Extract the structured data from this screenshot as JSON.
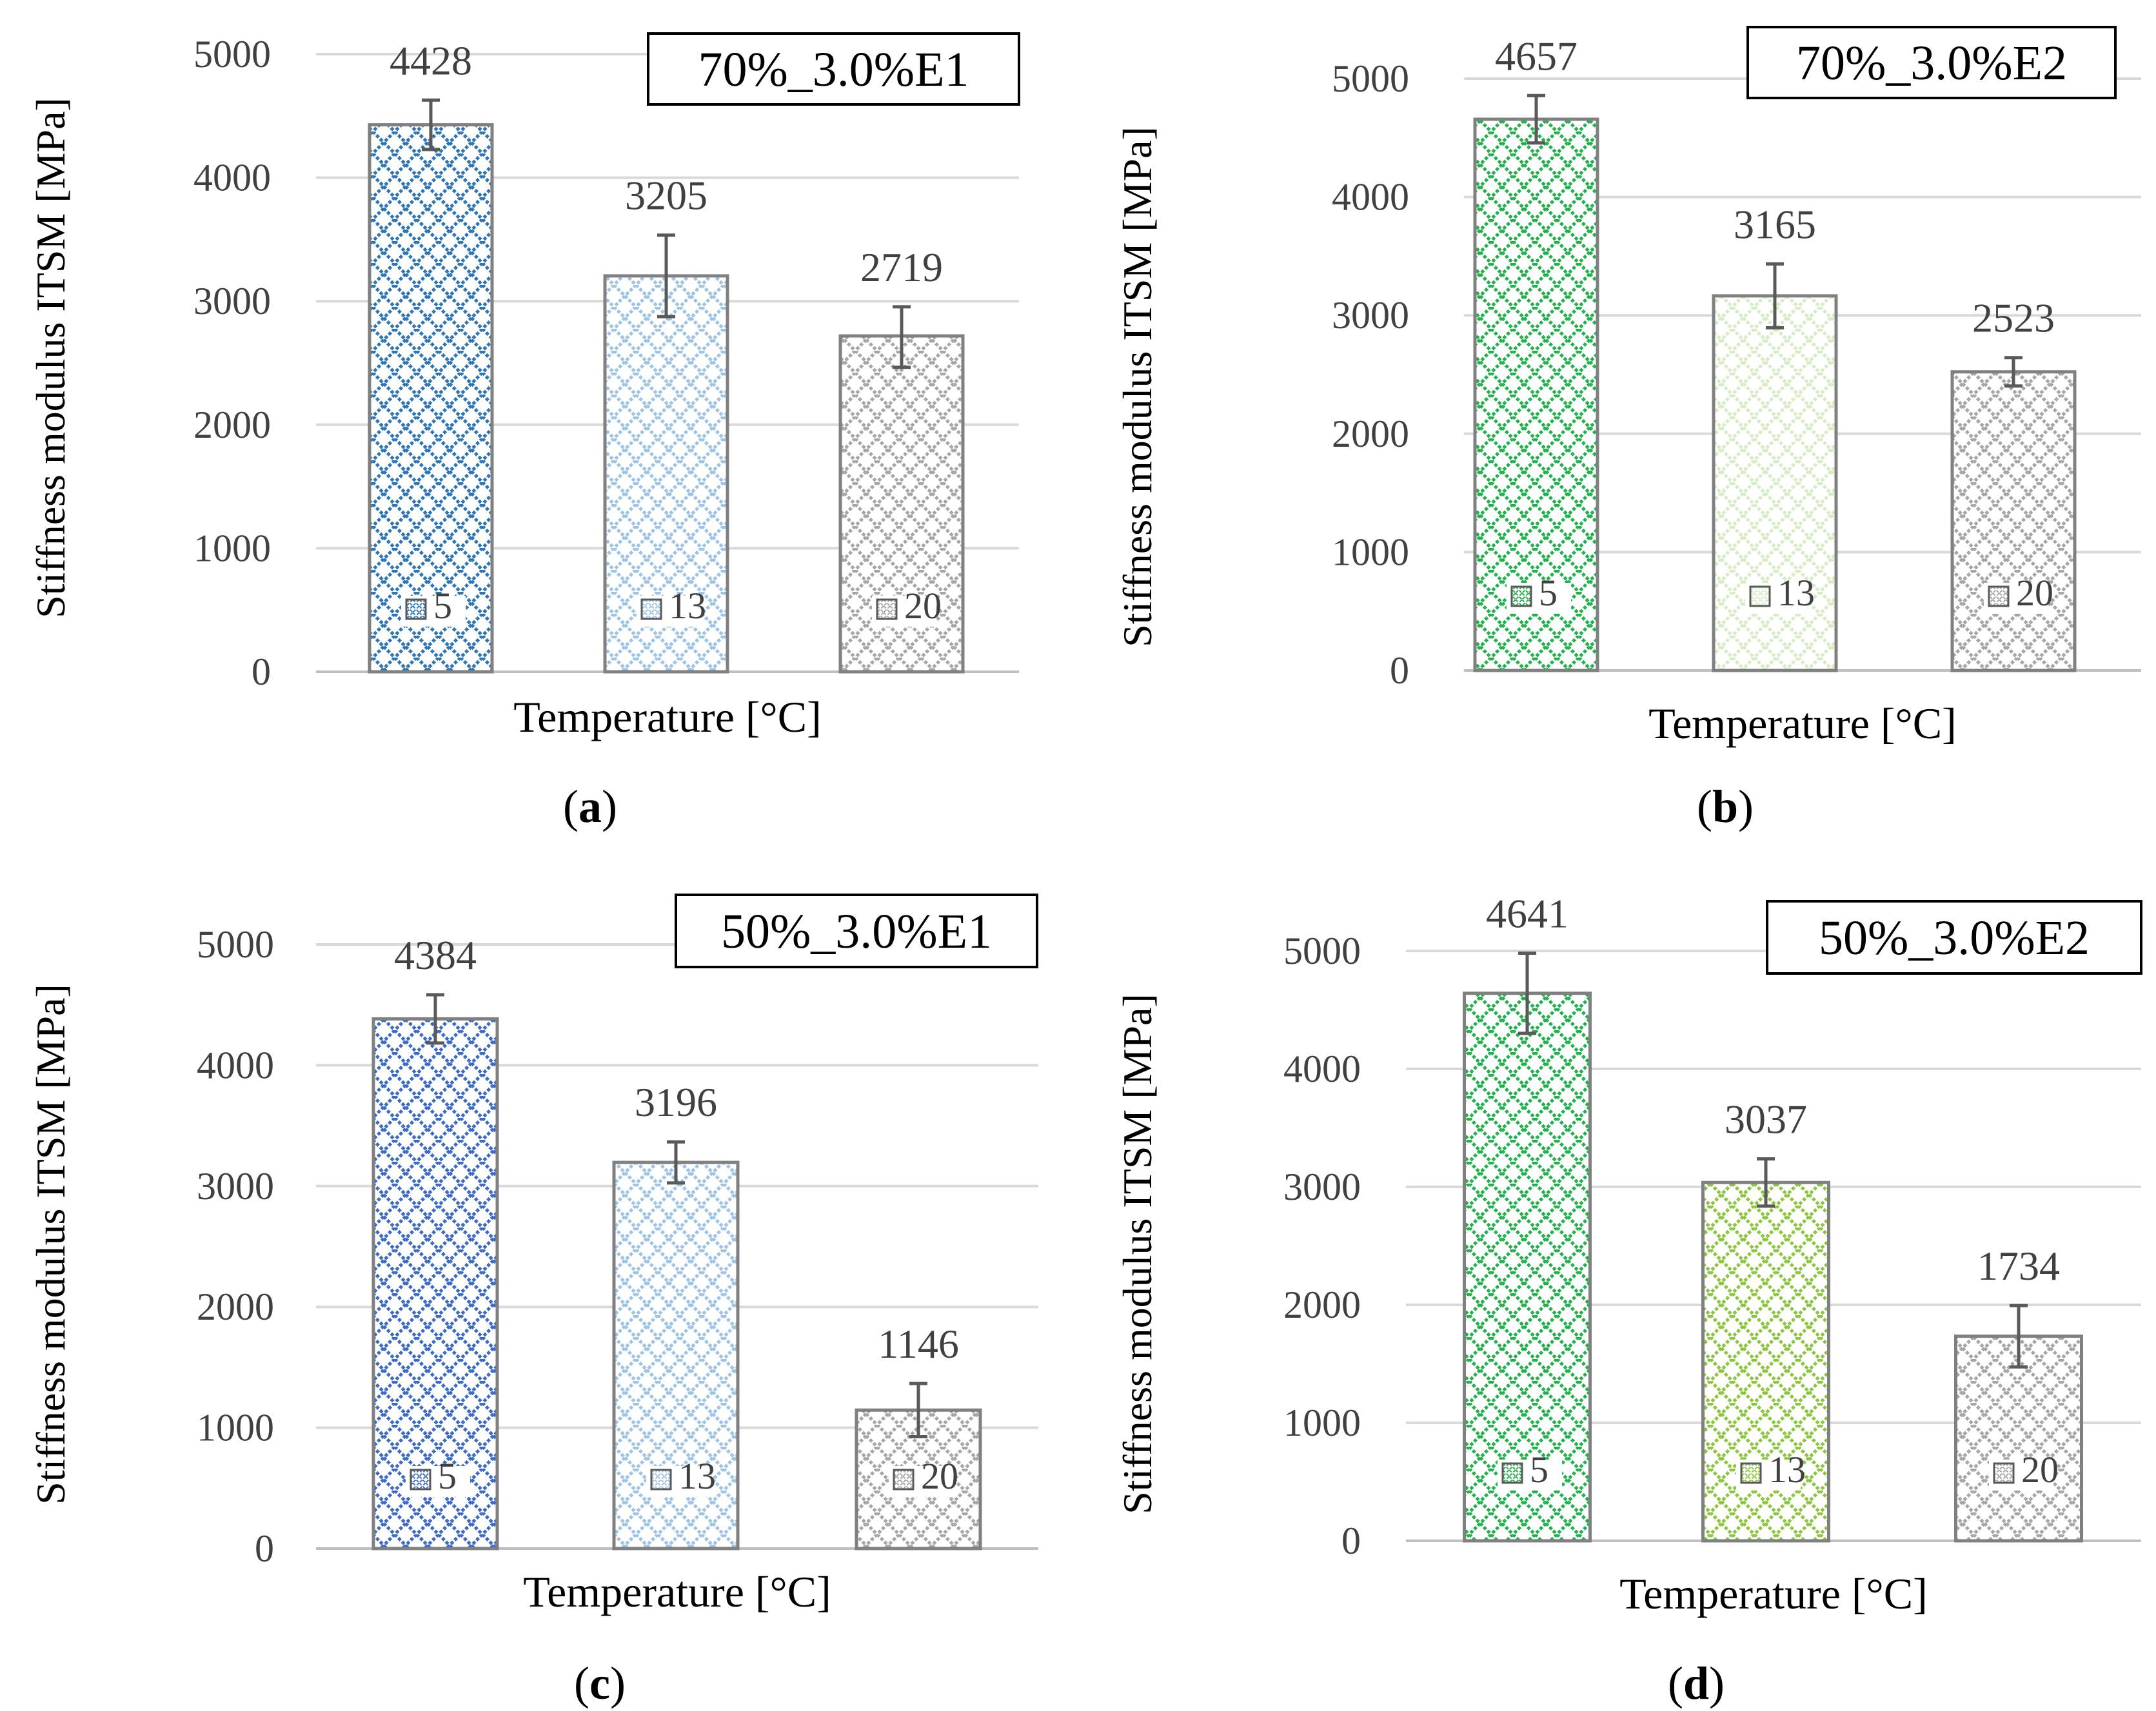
{
  "chart_data": [
    {
      "type": "bar",
      "panel_label": "a",
      "title": "70%_3.0%E1",
      "xlabel": "Temperature [°C]",
      "ylabel": "Stiffness modulus ITSM [MPa]",
      "ylim": [
        0,
        5000
      ],
      "yticks": [
        "0",
        "1000",
        "2000",
        "3000",
        "4000",
        "5000"
      ],
      "grid": true,
      "legend": "inside-bars-bottom",
      "categories": [
        "5",
        "13",
        "20"
      ],
      "values": [
        4428,
        3205,
        2719
      ],
      "value_labels": [
        "4428",
        "3205",
        "2719"
      ],
      "error_low": [
        4228,
        2875,
        2465
      ],
      "error_high": [
        4628,
        3535,
        2955
      ],
      "colors": [
        "#2e75b6",
        "#9dc3e6",
        "#a6a6a6"
      ]
    },
    {
      "type": "bar",
      "panel_label": "b",
      "title": "70%_3.0%E2",
      "xlabel": "Temperature [°C]",
      "ylabel": "Stiffness modulus ITSM [MPa]",
      "ylim": [
        0,
        5000
      ],
      "yticks": [
        "0",
        "1000",
        "2000",
        "3000",
        "4000",
        "5000"
      ],
      "grid": true,
      "legend": "inside-bars-bottom",
      "categories": [
        "5",
        "13",
        "20"
      ],
      "values": [
        4657,
        3165,
        2523
      ],
      "value_labels": [
        "4657",
        "3165",
        "2523"
      ],
      "error_low": [
        4457,
        2895,
        2403
      ],
      "error_high": [
        4857,
        3435,
        2643
      ],
      "colors": [
        "#22b14c",
        "#d5ecc4",
        "#a6a6a6"
      ]
    },
    {
      "type": "bar",
      "panel_label": "c",
      "title": "50%_3.0%E1",
      "xlabel": "Temperature [°C]",
      "ylabel": "Stiffness modulus ITSM [MPa]",
      "ylim": [
        0,
        5000
      ],
      "yticks": [
        "0",
        "1000",
        "2000",
        "3000",
        "4000",
        "5000"
      ],
      "grid": true,
      "legend": "inside-bars-bottom",
      "categories": [
        "5",
        "13",
        "20"
      ],
      "values": [
        4384,
        3196,
        1146
      ],
      "value_labels": [
        "4384",
        "3196",
        "1146"
      ],
      "error_low": [
        4184,
        3026,
        926
      ],
      "error_high": [
        4584,
        3366,
        1366
      ],
      "colors": [
        "#3c6bc4",
        "#9dc3e6",
        "#a6a6a6"
      ]
    },
    {
      "type": "bar",
      "panel_label": "d",
      "title": "50%_3.0%E2",
      "xlabel": "Temperature [°C]",
      "ylabel": "Stiffness modulus ITSM [MPa]",
      "ylim": [
        0,
        5000
      ],
      "yticks": [
        "0",
        "1000",
        "2000",
        "3000",
        "4000",
        "5000"
      ],
      "grid": true,
      "legend": "inside-bars-bottom",
      "categories": [
        "5",
        "13",
        "20"
      ],
      "values": [
        4641,
        3037,
        1734
      ],
      "value_labels": [
        "4641",
        "3037",
        "1734"
      ],
      "error_low": [
        4301,
        2837,
        1474
      ],
      "error_high": [
        4981,
        3237,
        1994
      ],
      "colors": [
        "#22b14c",
        "#8cc63f",
        "#a6a6a6"
      ]
    }
  ]
}
